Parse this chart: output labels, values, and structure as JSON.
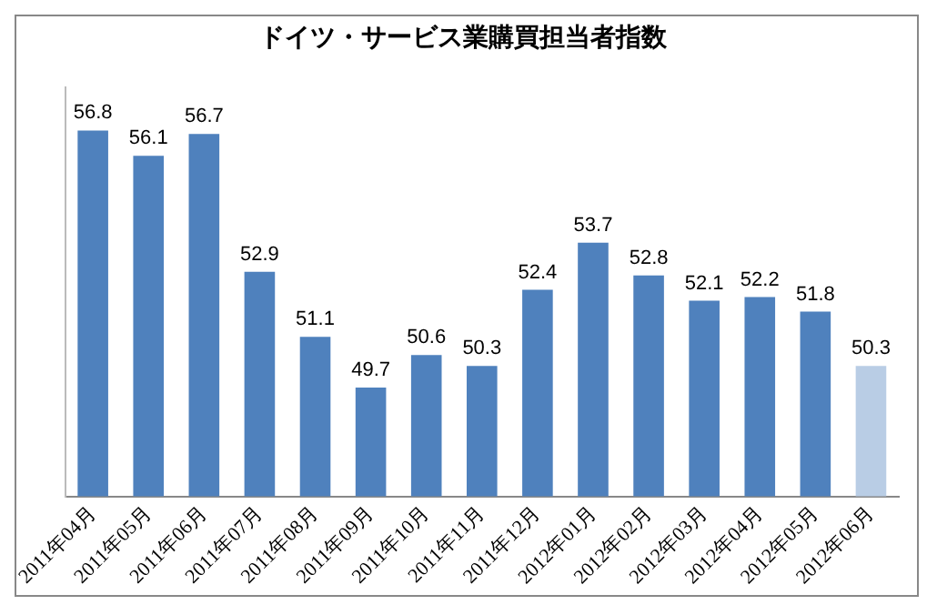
{
  "chart_data": {
    "type": "bar",
    "title": "ドイツ・サービス業購買担当者指数",
    "categories": [
      "2011年04月",
      "2011年05月",
      "2011年06月",
      "2011年07月",
      "2011年08月",
      "2011年09月",
      "2011年10月",
      "2011年11月",
      "2011年12月",
      "2012年01月",
      "2012年02月",
      "2012年03月",
      "2012年04月",
      "2012年05月",
      "2012年06月"
    ],
    "values": [
      56.8,
      56.1,
      56.7,
      52.9,
      51.1,
      49.7,
      50.6,
      50.3,
      52.4,
      53.7,
      52.8,
      52.1,
      52.2,
      51.8,
      50.3
    ],
    "colors": [
      "#4f81bd",
      "#4f81bd",
      "#4f81bd",
      "#4f81bd",
      "#4f81bd",
      "#4f81bd",
      "#4f81bd",
      "#4f81bd",
      "#4f81bd",
      "#4f81bd",
      "#4f81bd",
      "#4f81bd",
      "#4f81bd",
      "#4f81bd",
      "#b9cde5"
    ],
    "ylim": [
      46.7,
      58
    ],
    "data_labels": true,
    "tick_labels": "x"
  }
}
